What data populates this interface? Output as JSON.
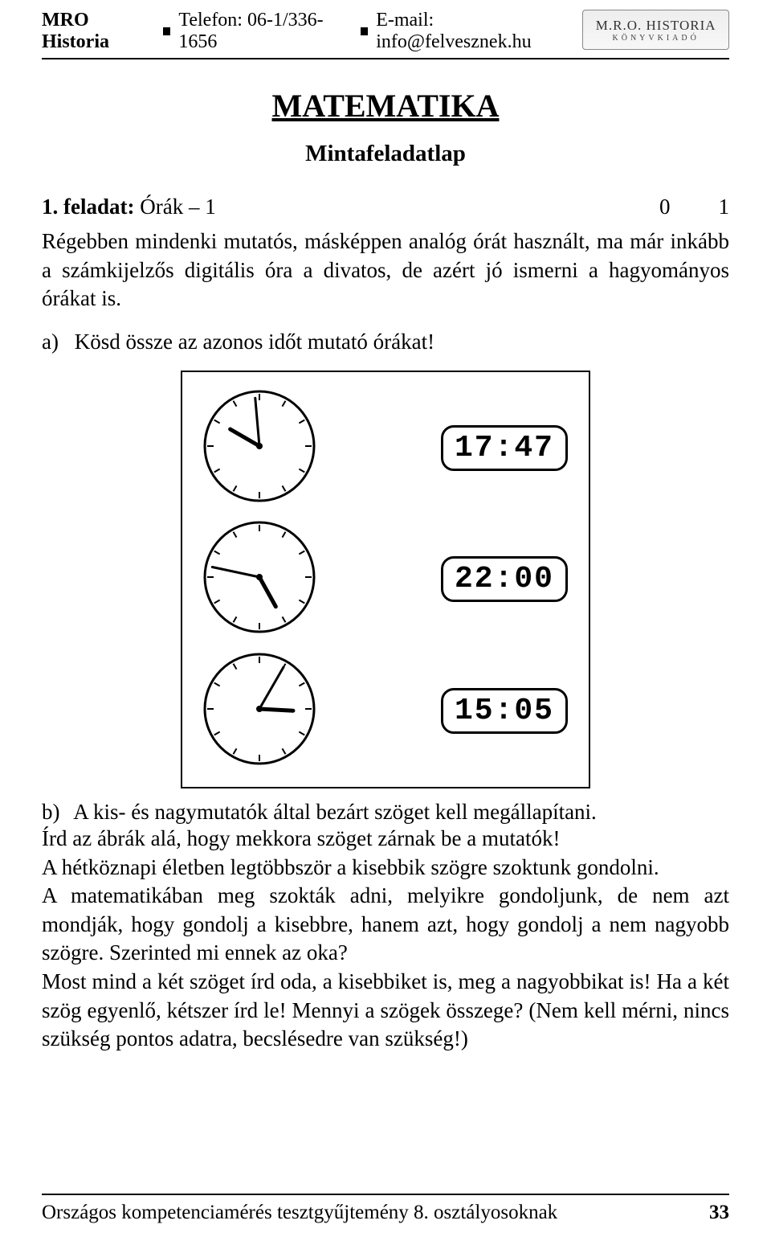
{
  "header": {
    "brand": "MRO Historia",
    "phone_label": "Telefon: 06-1/336-1656",
    "email_label": "E-mail: info@felvesznek.hu",
    "logo_main": "M.R.O. HISTORIA",
    "logo_sub": "KÖNYVKIADÓ"
  },
  "title": "MATEMATIKA",
  "subtitle": "Mintafeladatlap",
  "task": {
    "number": "1. feladat:",
    "name": "Órák – 1",
    "score_a": "0",
    "score_b": "1"
  },
  "p_intro": "Régebben mindenki mutatós, másképpen analóg órát használt, ma már inkább a számkijelzős digitális óra a divatos, de azért jó ismerni a hagyományos órákat is.",
  "sub_a": {
    "label": "a)",
    "text": "Kösd össze az azonos időt mutató órákat!"
  },
  "figure": {
    "box_border_color": "#000000",
    "clock_size": 140,
    "tick_color": "#000000",
    "hand_color": "#000000",
    "clocks": [
      {
        "hour_angle": 300,
        "minute_angle": 355,
        "hour_len": 42,
        "minute_len": 60
      },
      {
        "hour_angle": 151,
        "minute_angle": 282,
        "hour_len": 42,
        "minute_len": 60
      },
      {
        "hour_angle": 93,
        "minute_angle": 30,
        "hour_len": 42,
        "minute_len": 60
      }
    ],
    "digital": [
      "17:47",
      "22:00",
      "15:05"
    ],
    "digital_font_size": 38,
    "digital_border_radius": 16
  },
  "sub_b": {
    "label": "b)",
    "text": "A kis- és nagymutatók által bezárt szöget kell megállapítani."
  },
  "p_b1": "Írd az ábrák alá, hogy mekkora szöget zárnak be a mutatók!",
  "p_b2": "A hétköznapi életben legtöbbször a kisebbik szögre szoktunk gondolni.",
  "p_b3": "A matematikában meg szokták adni, melyikre gondoljunk, de nem azt mondják, hogy gondolj a kisebbre, hanem azt, hogy gondolj a nem nagyobb szögre. Szerinted mi ennek az oka?",
  "p_b4": "Most mind a két szöget írd oda, a kisebbiket is, meg a nagyobbikat is! Ha a két szög egyenlő, kétszer írd le! Mennyi a szögek összege? (Nem kell mérni, nincs szükség pontos adatra, becslésedre van szükség!)",
  "footer": {
    "left": "Országos kompetenciamérés tesztgyűjtemény 8. osztályosoknak",
    "page": "33"
  }
}
